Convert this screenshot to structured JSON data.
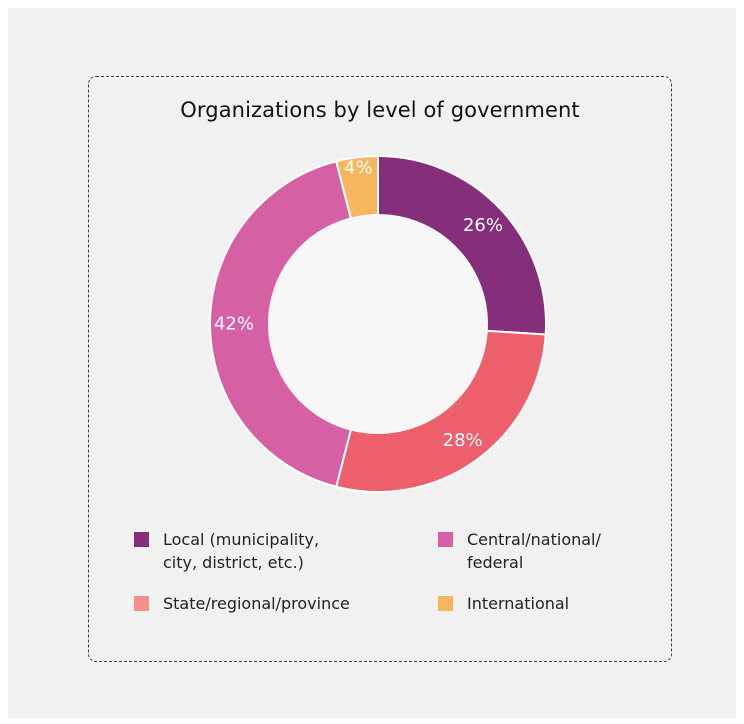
{
  "chart_data": {
    "type": "pie",
    "title": "Organizations by level of government",
    "donut": true,
    "categories": [
      "Local (municipality, city, district, etc.)",
      "State/regional/province",
      "Central/national/ federal",
      "International"
    ],
    "values": [
      26,
      28,
      42,
      4
    ],
    "value_labels": [
      "26%",
      "28%",
      "42%",
      "4%"
    ],
    "colors": [
      "#852f7a",
      "#ec5f6b",
      "#d660a4",
      "#f7b55e"
    ],
    "legend_colors": [
      "#852f7a",
      "#f2908b",
      "#d660a4",
      "#f7b55e"
    ],
    "legend_placement": "bottom"
  },
  "legend": {
    "local_line1": "Local (municipality,",
    "local_line2": "city, district, etc.)",
    "central_line1": "Central/national/",
    "central_line2": "federal",
    "state": "State/regional/province",
    "international": "International"
  }
}
